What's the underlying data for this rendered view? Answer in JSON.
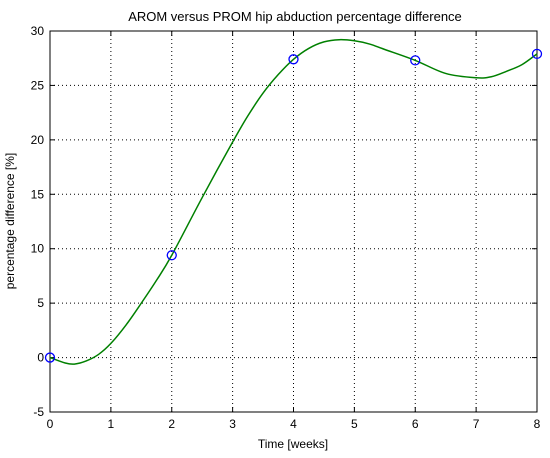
{
  "chart_data": {
    "type": "line",
    "title": "AROM versus PROM hip abduction percentage difference",
    "xlabel": "Time [weeks]",
    "ylabel": "percentage difference [%]",
    "xlim": [
      0,
      8
    ],
    "ylim": [
      -5,
      30
    ],
    "xticks": [
      0,
      1,
      2,
      3,
      4,
      5,
      6,
      7,
      8
    ],
    "yticks": [
      -5,
      0,
      5,
      10,
      15,
      20,
      25,
      30
    ],
    "xtick_labels": [
      "0",
      "1",
      "2",
      "3",
      "4",
      "5",
      "6",
      "7",
      "8"
    ],
    "ytick_labels": [
      "-5",
      "0",
      "5",
      "10",
      "15",
      "20",
      "25",
      "30"
    ],
    "grid": true,
    "series": [
      {
        "role": "measured",
        "marker": "circle",
        "color": "#0000ff",
        "x": [
          0,
          2,
          4,
          6,
          8
        ],
        "y": [
          0,
          9.4,
          27.4,
          27.3,
          27.9
        ]
      },
      {
        "role": "interpolating-curve",
        "color": "#008000",
        "x": [
          0,
          0.25,
          0.4,
          0.6,
          0.8,
          1,
          1.25,
          1.5,
          1.75,
          2,
          2.5,
          3,
          3.25,
          3.5,
          3.75,
          4,
          4.25,
          4.5,
          4.75,
          5,
          5.25,
          5.5,
          6,
          6.5,
          7,
          7.25,
          7.5,
          7.75,
          8
        ],
        "y": [
          0,
          -0.5,
          -0.6,
          -0.3,
          0.3,
          1.3,
          3.0,
          5.0,
          7.1,
          9.4,
          14.7,
          19.8,
          22.2,
          24.3,
          26.0,
          27.4,
          28.4,
          29.0,
          29.2,
          29.1,
          28.8,
          28.3,
          27.3,
          26.1,
          25.7,
          25.8,
          26.3,
          26.9,
          27.9
        ]
      }
    ]
  }
}
